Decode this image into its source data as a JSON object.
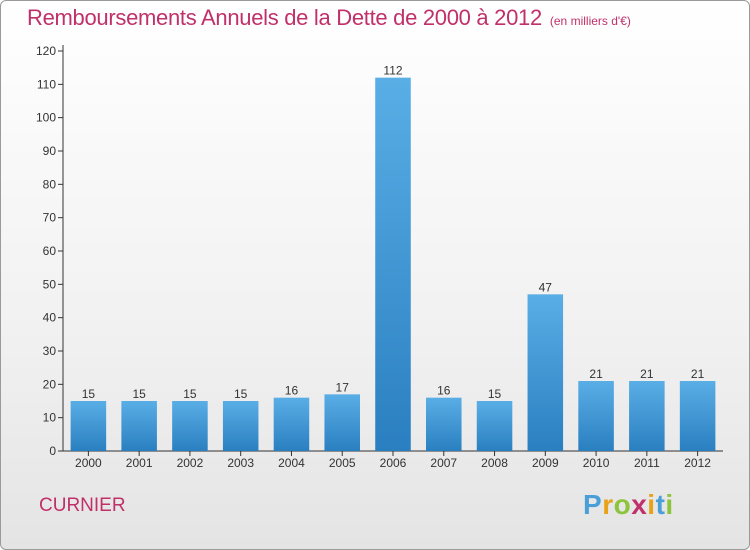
{
  "chart_data": {
    "type": "bar",
    "title": "Remboursements Annuels de la Dette de 2000 à 2012",
    "subtitle": "(en milliers d'€)",
    "categories": [
      "2000",
      "2001",
      "2002",
      "2003",
      "2004",
      "2005",
      "2006",
      "2007",
      "2008",
      "2009",
      "2010",
      "2011",
      "2012"
    ],
    "values": [
      15,
      15,
      15,
      15,
      16,
      17,
      112,
      16,
      15,
      47,
      21,
      21,
      21
    ],
    "xlabel": "",
    "ylabel": "",
    "ylim": [
      0,
      120
    ],
    "yticks": [
      0,
      10,
      20,
      30,
      40,
      50,
      60,
      70,
      80,
      90,
      100,
      110,
      120
    ],
    "grid": false,
    "legend": "none",
    "data_labels": true,
    "colors": {
      "bar_top": "#5aaee6",
      "bar_bottom": "#2a7fc0",
      "title": "#c0306a",
      "axis": "#333333"
    }
  },
  "commune": "CURNIER",
  "logo": {
    "letters": [
      {
        "ch": "P",
        "color": "#4a9fd8"
      },
      {
        "ch": "r",
        "color": "#e8a21a"
      },
      {
        "ch": "o",
        "color": "#8cc43c"
      },
      {
        "ch": "x",
        "color": "#c0306a"
      },
      {
        "ch": "i",
        "color": "#e8a21a"
      },
      {
        "ch": "t",
        "color": "#4a9fd8"
      },
      {
        "ch": "i",
        "color": "#8cc43c"
      }
    ]
  }
}
